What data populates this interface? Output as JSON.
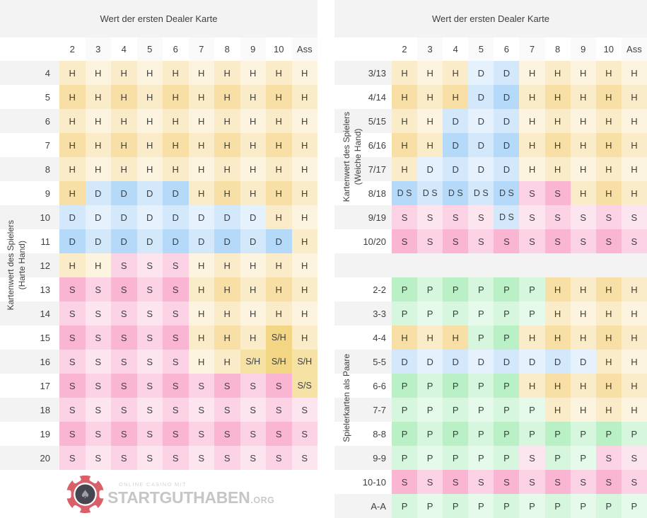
{
  "header_title": "Wert der ersten Dealer Karte",
  "columns": [
    "2",
    "3",
    "4",
    "5",
    "6",
    "7",
    "8",
    "9",
    "10",
    "Ass"
  ],
  "chart_data": [
    {
      "id": "hard",
      "type": "table",
      "title": "Wert der ersten Dealer Karte",
      "axis_label": "Kartenwert des Spielers\n(Harte Hand)",
      "columns": [
        "2",
        "3",
        "4",
        "5",
        "6",
        "7",
        "8",
        "9",
        "10",
        "Ass"
      ],
      "first_row_gray": true,
      "rows": [
        {
          "label": "4",
          "cells": [
            "H",
            "H",
            "H",
            "H",
            "H",
            "H",
            "H",
            "H",
            "H",
            "H"
          ]
        },
        {
          "label": "5",
          "cells": [
            "H",
            "H",
            "H",
            "H",
            "H",
            "H",
            "H",
            "H",
            "H",
            "H"
          ]
        },
        {
          "label": "6",
          "cells": [
            "H",
            "H",
            "H",
            "H",
            "H",
            "H",
            "H",
            "H",
            "H",
            "H"
          ]
        },
        {
          "label": "7",
          "cells": [
            "H",
            "H",
            "H",
            "H",
            "H",
            "H",
            "H",
            "H",
            "H",
            "H"
          ]
        },
        {
          "label": "8",
          "cells": [
            "H",
            "H",
            "H",
            "H",
            "H",
            "H",
            "H",
            "H",
            "H",
            "H"
          ]
        },
        {
          "label": "9",
          "cells": [
            "H",
            "D",
            "D",
            "D",
            "D",
            "H",
            "H",
            "H",
            "H",
            "H"
          ]
        },
        {
          "label": "10",
          "cells": [
            "D",
            "D",
            "D",
            "D",
            "D",
            "D",
            "D",
            "D",
            "H",
            "H"
          ]
        },
        {
          "label": "11",
          "cells": [
            "D",
            "D",
            "D",
            "D",
            "D",
            "D",
            "D",
            "D",
            "D",
            "H"
          ]
        },
        {
          "label": "12",
          "cells": [
            "H",
            "H",
            "S",
            "S",
            "S",
            "H",
            "H",
            "H",
            "H",
            "H"
          ]
        },
        {
          "label": "13",
          "cells": [
            "S",
            "S",
            "S",
            "S",
            "S",
            "H",
            "H",
            "H",
            "H",
            "H"
          ]
        },
        {
          "label": "14",
          "cells": [
            "S",
            "S",
            "S",
            "S",
            "S",
            "H",
            "H",
            "H",
            "H",
            "H"
          ]
        },
        {
          "label": "15",
          "cells": [
            "S",
            "S",
            "S",
            "S",
            "S",
            "H",
            "H",
            "H",
            "S/H",
            "H"
          ]
        },
        {
          "label": "16",
          "cells": [
            "S",
            "S",
            "S",
            "S",
            "S",
            "H",
            "H",
            "S/H",
            "S/H",
            "S/H"
          ]
        },
        {
          "label": "17",
          "cells": [
            "S",
            "S",
            "S",
            "S",
            "S",
            "S",
            "S",
            "S",
            "S",
            "S/S"
          ]
        },
        {
          "label": "18",
          "cells": [
            "S",
            "S",
            "S",
            "S",
            "S",
            "S",
            "S",
            "S",
            "S",
            "S"
          ]
        },
        {
          "label": "19",
          "cells": [
            "S",
            "S",
            "S",
            "S",
            "S",
            "S",
            "S",
            "S",
            "S",
            "S"
          ]
        },
        {
          "label": "20",
          "cells": [
            "S",
            "S",
            "S",
            "S",
            "S",
            "S",
            "S",
            "S",
            "S",
            "S"
          ]
        }
      ]
    },
    {
      "id": "soft",
      "type": "table",
      "title": "Wert der ersten Dealer Karte",
      "axis_label": "Kartenwert des Spielers\n(Weiche Hand)",
      "columns": [
        "2",
        "3",
        "4",
        "5",
        "6",
        "7",
        "8",
        "9",
        "10",
        "Ass"
      ],
      "first_row_gray": true,
      "rows": [
        {
          "label": "3/13",
          "cells": [
            "H",
            "H",
            "H",
            "D",
            "D",
            "H",
            "H",
            "H",
            "H",
            "H"
          ]
        },
        {
          "label": "4/14",
          "cells": [
            "H",
            "H",
            "H",
            "D",
            "D",
            "H",
            "H",
            "H",
            "H",
            "H"
          ]
        },
        {
          "label": "5/15",
          "cells": [
            "H",
            "H",
            "D",
            "D",
            "D",
            "H",
            "H",
            "H",
            "H",
            "H"
          ]
        },
        {
          "label": "6/16",
          "cells": [
            "H",
            "H",
            "D",
            "D",
            "D",
            "H",
            "H",
            "H",
            "H",
            "H"
          ]
        },
        {
          "label": "7/17",
          "cells": [
            "H",
            "D",
            "D",
            "D",
            "D",
            "H",
            "H",
            "H",
            "H",
            "H"
          ]
        },
        {
          "label": "8/18",
          "cells": [
            "D S",
            "D S",
            "D S",
            "D S",
            "D S",
            "S",
            "S",
            "H",
            "H",
            "H"
          ]
        },
        {
          "label": "9/19",
          "cells": [
            "S",
            "S",
            "S",
            "S",
            "D S",
            "S",
            "S",
            "S",
            "S",
            "S"
          ]
        },
        {
          "label": "10/20",
          "cells": [
            "S",
            "S",
            "S",
            "S",
            "S",
            "S",
            "S",
            "S",
            "S",
            "S"
          ]
        }
      ]
    },
    {
      "id": "pairs",
      "type": "table",
      "title": "Wert der ersten Dealer Karte",
      "axis_label": "Spielerkarten als Paare",
      "columns": [
        "2",
        "3",
        "4",
        "5",
        "6",
        "7",
        "8",
        "9",
        "10",
        "Ass"
      ],
      "first_row_gray": false,
      "rows": [
        {
          "label": "2-2",
          "cells": [
            "P",
            "P",
            "P",
            "P",
            "P",
            "P",
            "H",
            "H",
            "H",
            "H"
          ]
        },
        {
          "label": "3-3",
          "cells": [
            "P",
            "P",
            "P",
            "P",
            "P",
            "P",
            "H",
            "H",
            "H",
            "H"
          ]
        },
        {
          "label": "4-4",
          "cells": [
            "H",
            "H",
            "H",
            "P",
            "P",
            "H",
            "H",
            "H",
            "H",
            "H"
          ]
        },
        {
          "label": "5-5",
          "cells": [
            "D",
            "D",
            "D",
            "D",
            "D",
            "D",
            "D",
            "D",
            "H",
            "H"
          ]
        },
        {
          "label": "6-6",
          "cells": [
            "P",
            "P",
            "P",
            "P",
            "P",
            "H",
            "H",
            "H",
            "H",
            "H"
          ]
        },
        {
          "label": "7-7",
          "cells": [
            "P",
            "P",
            "P",
            "P",
            "P",
            "P",
            "H",
            "H",
            "H",
            "H"
          ]
        },
        {
          "label": "8-8",
          "cells": [
            "P",
            "P",
            "P",
            "P",
            "P",
            "P",
            "P",
            "P",
            "P",
            "P"
          ]
        },
        {
          "label": "9-9",
          "cells": [
            "P",
            "P",
            "P",
            "P",
            "P",
            "S",
            "P",
            "P",
            "S",
            "S"
          ]
        },
        {
          "label": "10-10",
          "cells": [
            "S",
            "S",
            "S",
            "S",
            "S",
            "S",
            "S",
            "S",
            "S",
            "S"
          ]
        },
        {
          "label": "A-A",
          "cells": [
            "P",
            "P",
            "P",
            "P",
            "P",
            "P",
            "P",
            "P",
            "P",
            "P"
          ]
        }
      ]
    }
  ],
  "logo": {
    "tagline": "ONLINE CASINO MIT",
    "name": "STARTGUTHABEN",
    "tld": ".ORG"
  },
  "colors": {
    "action_H": "#F3C55C",
    "action_D": "#78BAF3",
    "action_S": "#F678AF",
    "action_P": "#82E498",
    "special_strong": "#F3D683",
    "special_soft": "#F7E2A6",
    "band_bg": "#F3F3F3",
    "header_alt_bg": "#FAFAFA",
    "text": "#3C4043",
    "chip_red": "#D95F68",
    "chip_dark": "#45464F",
    "chip_spade": "#99A0A9",
    "logo_text": "#C6C6C6"
  }
}
